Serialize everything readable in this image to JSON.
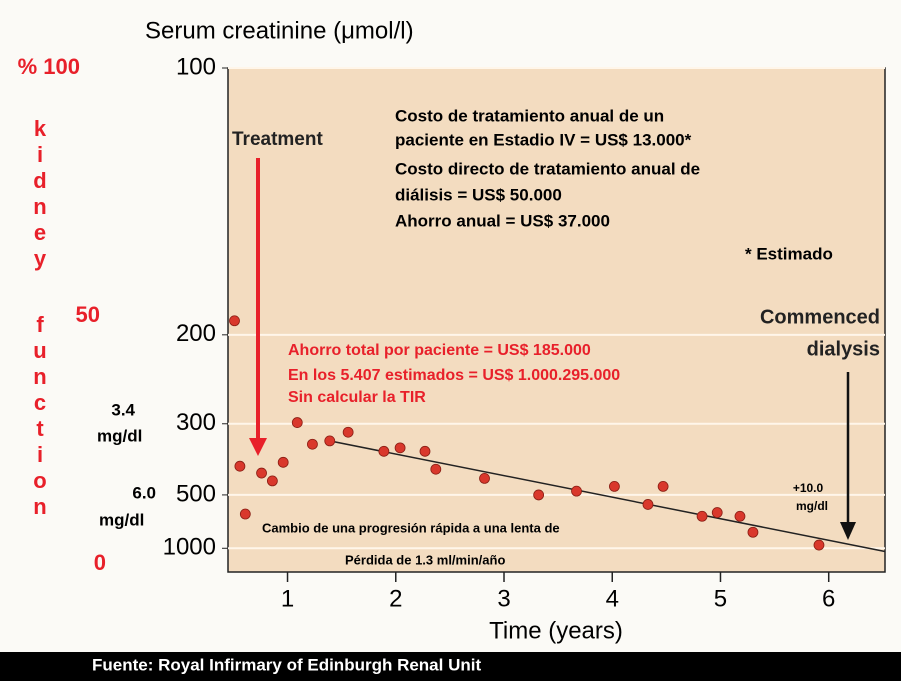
{
  "chart_data": {
    "type": "scatter",
    "title": "Serum creatinine (μmol/l)",
    "x_label": "Time (years)",
    "x": [
      0.51,
      0.56,
      0.61,
      0.76,
      0.86,
      0.96,
      1.09,
      1.23,
      1.39,
      1.56,
      1.89,
      2.04,
      2.27,
      2.37,
      2.82,
      3.32,
      3.67,
      4.02,
      4.33,
      4.47,
      4.83,
      4.97,
      5.18,
      5.3,
      5.91
    ],
    "values": [
      190,
      394,
      609,
      415,
      442,
      383,
      298,
      339,
      332,
      315,
      355,
      347,
      355,
      403,
      433,
      500,
      483,
      463,
      549,
      463,
      625,
      599,
      625,
      769,
      943
    ],
    "color": "#d9382c",
    "trend": {
      "x": [
        1.39,
        6.52
      ],
      "values": [
        332,
        1064
      ],
      "color": "#222222"
    },
    "xlim": [
      0.45,
      6.52
    ],
    "xticks": [
      1,
      2,
      3,
      4,
      5,
      6
    ],
    "ylim": [
      100,
      1800
    ],
    "y_scale": "reciprocal",
    "yticks": [
      100,
      200,
      300,
      500,
      1000
    ],
    "grid": true,
    "kidney_axis": {
      "label": "kidney function",
      "ylim": [
        0,
        100
      ],
      "yticks": [
        {
          "value": 100,
          "label": "% 100"
        },
        50,
        0
      ],
      "color": "#e8202a"
    },
    "annotations": {
      "cost": [
        "Costo de tratamiento anual de un",
        "paciente en Estadio IV = US$ 13.000*",
        "Costo directo de tratamiento anual de",
        "diálisis = US$ 50.000",
        "Ahorro anual = US$ 37.000"
      ],
      "estimate": "* Estimado",
      "treatment": "Treatment",
      "savings": [
        "Ahorro total por paciente = US$ 185.000",
        "En los 5.407 estimados = US$ 1.000.295.000",
        "Sin calcular la TIR"
      ],
      "dialysis": [
        "Commenced",
        "dialysis"
      ],
      "dialysis_level": [
        "+10.0",
        "mg/dl"
      ],
      "progression": [
        "Cambio de una progresión rápida a una lenta de",
        "Pérdida de 1.3 ml/min/año"
      ],
      "level_1": [
        "3.4",
        "mg/dl"
      ],
      "level_2": [
        "6.0",
        "mg/dl"
      ]
    },
    "source": "Fuente: Royal Infirmary of Edinburgh Renal Unit"
  }
}
